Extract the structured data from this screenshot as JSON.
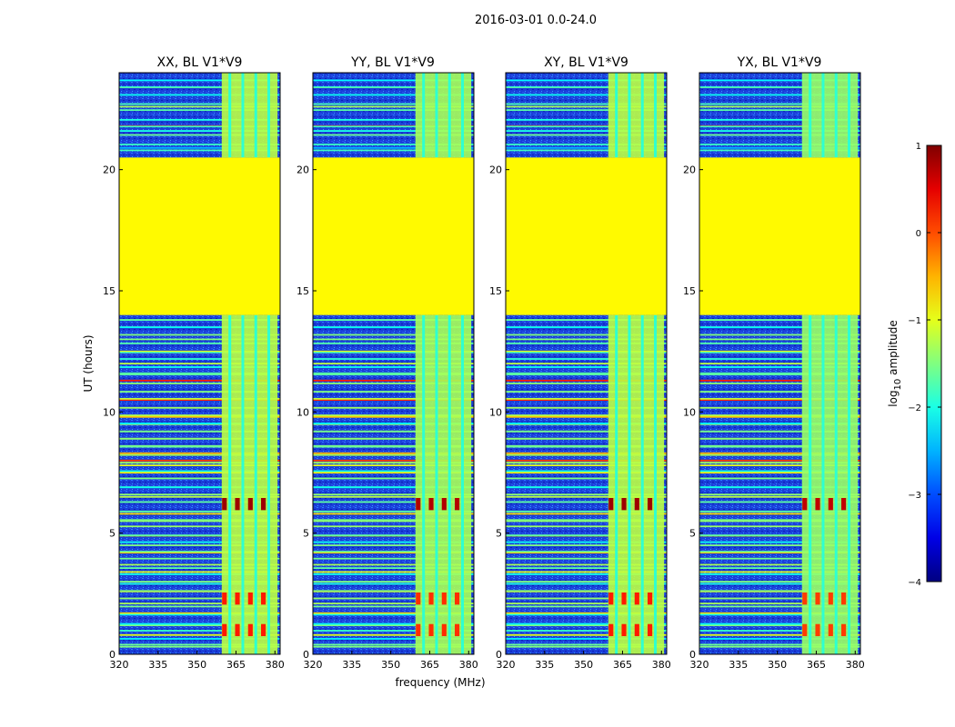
{
  "figure": {
    "suptitle": "2016-03-01 0.0-24.0"
  },
  "chart_data": {
    "type": "heatmap",
    "xlabel": "frequency (MHz)",
    "ylabel": "UT (hours)",
    "xlim": [
      320,
      382
    ],
    "ylim": [
      0,
      24
    ],
    "x_ticks": [
      "320",
      "335",
      "350",
      "365",
      "380"
    ],
    "x_tick_values": [
      320,
      335,
      350,
      365,
      380
    ],
    "y_ticks": [
      "0",
      "5",
      "10",
      "15",
      "20"
    ],
    "y_tick_values": [
      0,
      5,
      10,
      15,
      20
    ],
    "panels": [
      {
        "title": "XX, BL V1*V9",
        "signal_level": 0.55
      },
      {
        "title": "YY, BL V1*V9",
        "signal_level": 0.45
      },
      {
        "title": "XY, BL V1*V9",
        "signal_level": 0.55
      },
      {
        "title": "YX, BL V1*V9",
        "signal_level": 0.38
      }
    ],
    "gap": {
      "start_hours": 14.0,
      "end_hours": 20.5,
      "log_value": -0.85
    },
    "band_channels_mhz": [
      360,
      365,
      370,
      375,
      380
    ],
    "band_range_mhz": [
      359.5,
      381
    ],
    "event_times_hours": [
      6.2,
      2.3,
      1.0
    ],
    "colorbar": {
      "label": "log",
      "label_sub": "10",
      "label_rest": " amplitude",
      "range": [
        -4,
        1
      ],
      "ticks": [
        "1",
        "0",
        "−1",
        "−2",
        "−3",
        "−4"
      ],
      "tick_values": [
        1,
        0,
        -1,
        -2,
        -3,
        -4
      ],
      "colormap": "jet"
    }
  }
}
